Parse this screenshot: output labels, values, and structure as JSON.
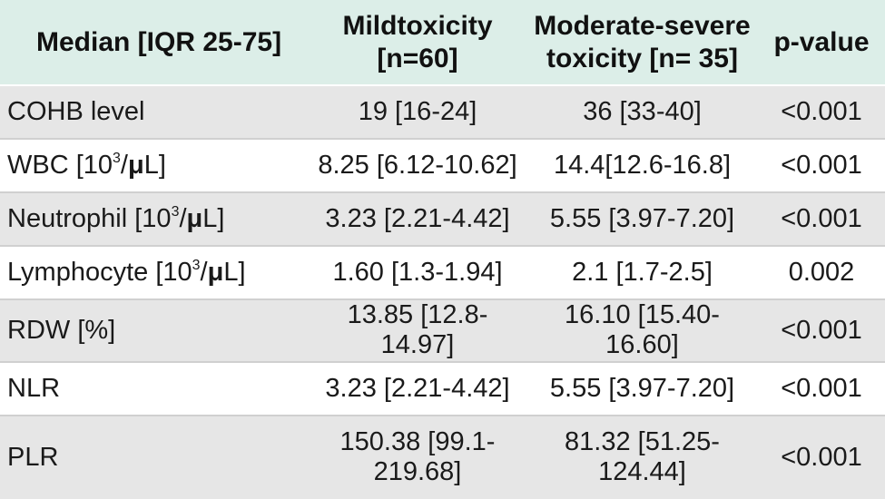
{
  "table": {
    "headers": [
      "Median [IQR 25-75]",
      "Mildtoxicity [n=60]",
      "Moderate-severe toxicity [n= 35]",
      "p-value"
    ],
    "rows": [
      {
        "label": "COHB level",
        "mild": "19 [16-24]",
        "moderate": "36 [33-40]",
        "p": "<0.001"
      },
      {
        "label_pre": "WBC [10",
        "label_sup": "3",
        "label_mid": "/",
        "label_mu": "μ",
        "label_post": "L]",
        "mild": "8.25 [6.12-10.62]",
        "moderate": "14.4[12.6-16.8]",
        "p": "<0.001"
      },
      {
        "label_pre": "Neutrophil [10",
        "label_sup": "3",
        "label_mid": "/",
        "label_mu": "μ",
        "label_post": "L]",
        "mild": "3.23 [2.21-4.42]",
        "moderate": "5.55 [3.97-7.20]",
        "p": "<0.001"
      },
      {
        "label_pre": "Lymphocyte [10",
        "label_sup": "3",
        "label_mid": "/",
        "label_mu": "μ",
        "label_post": "L]",
        "mild": "1.60 [1.3-1.94]",
        "moderate": "2.1 [1.7-2.5]",
        "p": "0.002"
      },
      {
        "label": "RDW [%]",
        "mild": "13.85 [12.8-14.97]",
        "moderate": "16.10 [15.40-16.60]",
        "p": "<0.001"
      },
      {
        "label": "NLR",
        "mild": "3.23 [2.21-4.42]",
        "moderate": "5.55 [3.97-7.20]",
        "p": "<0.001"
      },
      {
        "label": "PLR",
        "mild": "150.38 [99.1-219.68]",
        "moderate": "81.32 [51.25-124.44]",
        "p": "<0.001"
      }
    ]
  }
}
